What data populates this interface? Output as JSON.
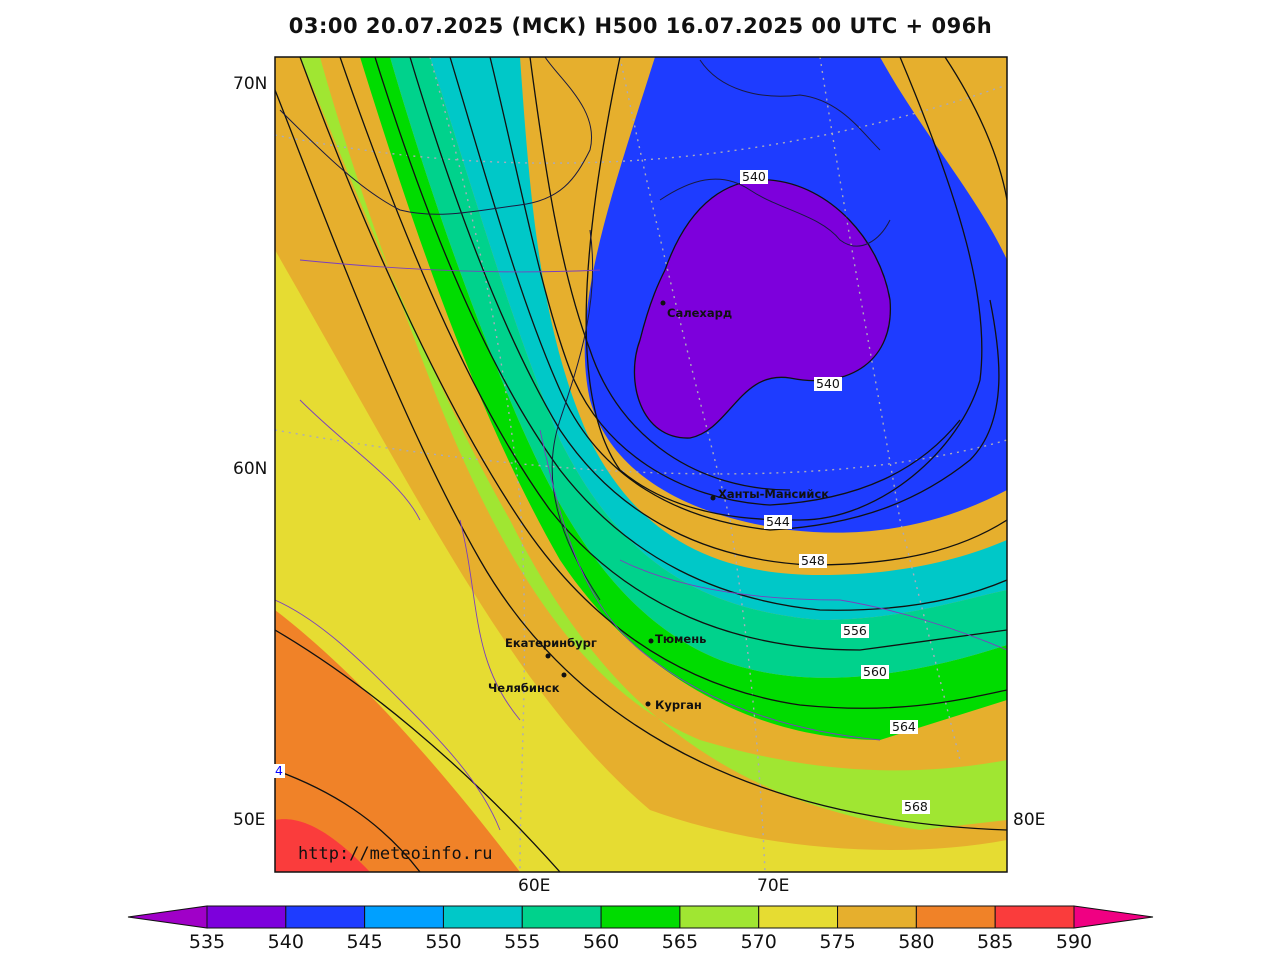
{
  "title": "03:00 20.07.2025 (МСК) H500  16.07.2025 00 UTC + 096h",
  "lat_labels": [
    "70N",
    "60N",
    "50E"
  ],
  "lon_labels": [
    "60E",
    "70E",
    "80E"
  ],
  "watermark": "http://meteoinfo.ru",
  "cities": [
    {
      "name": "Салехард"
    },
    {
      "name": "Ханты-Мансийск"
    },
    {
      "name": "Тюмень"
    },
    {
      "name": "Екатеринбург"
    },
    {
      "name": "Челябинск"
    },
    {
      "name": "Курган"
    }
  ],
  "contour_labels": [
    "540",
    "540",
    "544",
    "548",
    "556",
    "560",
    "564",
    "568",
    "4"
  ],
  "colorbar": {
    "ticks": [
      "535",
      "540",
      "545",
      "550",
      "555",
      "560",
      "565",
      "570",
      "575",
      "580",
      "585",
      "590"
    ],
    "colors": [
      "#a000c8",
      "#7d00dc",
      "#1e3cff",
      "#00a0ff",
      "#00c8c8",
      "#00d28c",
      "#00dc00",
      "#a0e632",
      "#e6dc32",
      "#e6af2d",
      "#f08228",
      "#fa3c3c",
      "#f00082"
    ]
  }
}
